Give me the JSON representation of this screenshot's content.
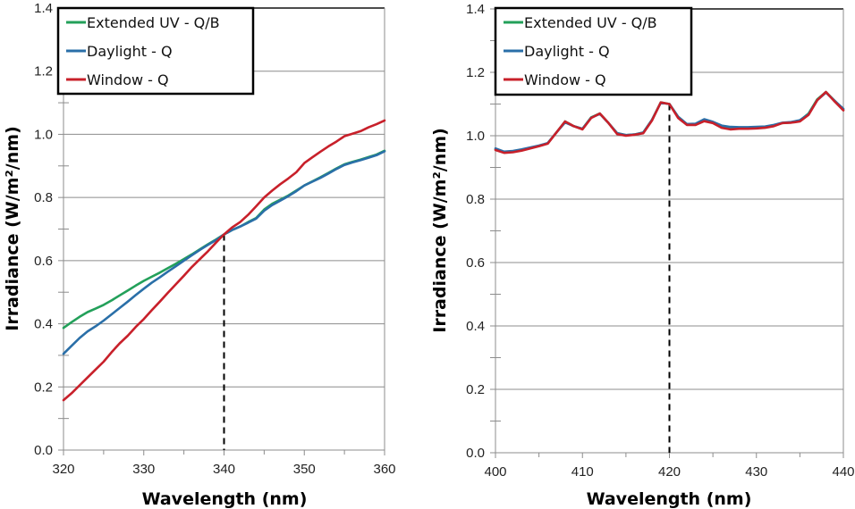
{
  "chart_data": [
    {
      "type": "line",
      "title": "",
      "xlabel": "Wavelength (nm)",
      "ylabel": "Irradiance (W/m²/nm)",
      "xlim": [
        320,
        360
      ],
      "ylim": [
        0.0,
        1.4
      ],
      "xticks": [
        "320",
        "330",
        "340",
        "350",
        "360"
      ],
      "xtick_values": [
        320,
        330,
        340,
        350,
        360
      ],
      "yticks": [
        "0.0",
        "0.2",
        "0.4",
        "0.6",
        "0.8",
        "1.0",
        "1.2",
        "1.4"
      ],
      "ytick_values": [
        0.0,
        0.2,
        0.4,
        0.6,
        0.8,
        1.0,
        1.2,
        1.4
      ],
      "grid": "horizontal",
      "legend_position": "top-left",
      "reference_line": {
        "x": 340,
        "style": "dashed",
        "color": "#000000"
      },
      "series": [
        {
          "name": "Extended UV - Q/B",
          "color": "#23A05A",
          "x": [
            320,
            321,
            322,
            323,
            324,
            325,
            326,
            327,
            328,
            329,
            330,
            331,
            332,
            333,
            334,
            335,
            336,
            337,
            338,
            339,
            340,
            341,
            342,
            343,
            344,
            345,
            346,
            347,
            348,
            349,
            350,
            351,
            352,
            353,
            354,
            355,
            356,
            357,
            358,
            359,
            360
          ],
          "y": [
            0.387,
            0.405,
            0.422,
            0.437,
            0.448,
            0.46,
            0.474,
            0.49,
            0.505,
            0.521,
            0.536,
            0.549,
            0.562,
            0.576,
            0.59,
            0.605,
            0.62,
            0.636,
            0.652,
            0.667,
            0.683,
            0.697,
            0.708,
            0.722,
            0.735,
            0.762,
            0.78,
            0.793,
            0.806,
            0.822,
            0.838,
            0.851,
            0.864,
            0.878,
            0.892,
            0.905,
            0.913,
            0.92,
            0.928,
            0.936,
            0.948
          ]
        },
        {
          "name": "Daylight - Q",
          "color": "#2A6FA8",
          "x": [
            320,
            321,
            322,
            323,
            324,
            325,
            326,
            327,
            328,
            329,
            330,
            331,
            332,
            333,
            334,
            335,
            336,
            337,
            338,
            339,
            340,
            341,
            342,
            343,
            344,
            345,
            346,
            347,
            348,
            349,
            350,
            351,
            352,
            353,
            354,
            355,
            356,
            357,
            358,
            359,
            360
          ],
          "y": [
            0.305,
            0.33,
            0.355,
            0.376,
            0.392,
            0.41,
            0.43,
            0.45,
            0.47,
            0.491,
            0.511,
            0.53,
            0.547,
            0.565,
            0.582,
            0.6,
            0.617,
            0.634,
            0.65,
            0.665,
            0.683,
            0.697,
            0.708,
            0.72,
            0.733,
            0.758,
            0.776,
            0.79,
            0.804,
            0.82,
            0.838,
            0.85,
            0.862,
            0.876,
            0.89,
            0.903,
            0.911,
            0.918,
            0.926,
            0.934,
            0.946
          ]
        },
        {
          "name": "Window - Q",
          "color": "#C8202A",
          "x": [
            320,
            321,
            322,
            323,
            324,
            325,
            326,
            327,
            328,
            329,
            330,
            331,
            332,
            333,
            334,
            335,
            336,
            337,
            338,
            339,
            340,
            341,
            342,
            343,
            344,
            345,
            346,
            347,
            348,
            349,
            350,
            351,
            352,
            353,
            354,
            355,
            356,
            357,
            358,
            359,
            360
          ],
          "y": [
            0.158,
            0.18,
            0.205,
            0.23,
            0.255,
            0.28,
            0.31,
            0.338,
            0.362,
            0.39,
            0.415,
            0.443,
            0.47,
            0.498,
            0.525,
            0.552,
            0.58,
            0.605,
            0.63,
            0.657,
            0.683,
            0.705,
            0.722,
            0.745,
            0.772,
            0.8,
            0.822,
            0.842,
            0.86,
            0.88,
            0.909,
            0.927,
            0.945,
            0.962,
            0.977,
            0.994,
            1.002,
            1.01,
            1.022,
            1.032,
            1.044
          ]
        }
      ]
    },
    {
      "type": "line",
      "title": "",
      "xlabel": "Wavelength (nm)",
      "ylabel": "Irradiance (W/m²/nm)",
      "xlim": [
        400,
        440
      ],
      "ylim": [
        0.0,
        1.4
      ],
      "xticks": [
        "400",
        "410",
        "420",
        "430",
        "440"
      ],
      "xtick_values": [
        400,
        410,
        420,
        430,
        440
      ],
      "yticks": [
        "0.0",
        "0.2",
        "0.4",
        "0.6",
        "0.8",
        "1.0",
        "1.2",
        "1.4"
      ],
      "ytick_values": [
        0.0,
        0.2,
        0.4,
        0.6,
        0.8,
        1.0,
        1.2,
        1.4
      ],
      "grid": "horizontal",
      "legend_position": "top-left",
      "reference_line": {
        "x": 420,
        "style": "dashed",
        "color": "#000000"
      },
      "series": [
        {
          "name": "Extended UV - Q/B",
          "color": "#23A05A",
          "x": [
            400,
            401,
            402,
            403,
            404,
            405,
            406,
            407,
            408,
            409,
            410,
            411,
            412,
            413,
            414,
            415,
            416,
            417,
            418,
            419,
            420,
            421,
            422,
            423,
            424,
            425,
            426,
            427,
            428,
            429,
            430,
            431,
            432,
            433,
            434,
            435,
            436,
            437,
            438,
            439,
            440
          ],
          "y": [
            0.957,
            0.948,
            0.95,
            0.955,
            0.962,
            0.968,
            0.976,
            1.01,
            1.045,
            1.03,
            1.022,
            1.058,
            1.07,
            1.04,
            1.008,
            1.002,
            1.004,
            1.01,
            1.05,
            1.105,
            1.1,
            1.06,
            1.036,
            1.036,
            1.05,
            1.042,
            1.03,
            1.025,
            1.024,
            1.024,
            1.025,
            1.027,
            1.032,
            1.04,
            1.042,
            1.048,
            1.07,
            1.115,
            1.138,
            1.11,
            1.082
          ]
        },
        {
          "name": "Daylight - Q",
          "color": "#2A6FA8",
          "x": [
            400,
            401,
            402,
            403,
            404,
            405,
            406,
            407,
            408,
            409,
            410,
            411,
            412,
            413,
            414,
            415,
            416,
            417,
            418,
            419,
            420,
            421,
            422,
            423,
            424,
            425,
            426,
            427,
            428,
            429,
            430,
            431,
            432,
            433,
            434,
            435,
            436,
            437,
            438,
            439,
            440
          ],
          "y": [
            0.96,
            0.95,
            0.952,
            0.957,
            0.963,
            0.969,
            0.977,
            1.01,
            1.042,
            1.03,
            1.022,
            1.057,
            1.069,
            1.04,
            1.008,
            1.002,
            1.004,
            1.01,
            1.05,
            1.104,
            1.1,
            1.06,
            1.037,
            1.038,
            1.052,
            1.044,
            1.032,
            1.028,
            1.027,
            1.027,
            1.028,
            1.029,
            1.034,
            1.041,
            1.043,
            1.049,
            1.068,
            1.112,
            1.136,
            1.11,
            1.085
          ]
        },
        {
          "name": "Window - Q",
          "color": "#C8202A",
          "x": [
            400,
            401,
            402,
            403,
            404,
            405,
            406,
            407,
            408,
            409,
            410,
            411,
            412,
            413,
            414,
            415,
            416,
            417,
            418,
            419,
            420,
            421,
            422,
            423,
            424,
            425,
            426,
            427,
            428,
            429,
            430,
            431,
            432,
            433,
            434,
            435,
            436,
            437,
            438,
            439,
            440
          ],
          "y": [
            0.955,
            0.946,
            0.948,
            0.953,
            0.96,
            0.967,
            0.975,
            1.01,
            1.045,
            1.03,
            1.02,
            1.056,
            1.07,
            1.04,
            1.005,
            1.0,
            1.003,
            1.008,
            1.048,
            1.105,
            1.1,
            1.056,
            1.034,
            1.034,
            1.046,
            1.04,
            1.025,
            1.02,
            1.022,
            1.022,
            1.023,
            1.025,
            1.03,
            1.04,
            1.041,
            1.045,
            1.066,
            1.112,
            1.138,
            1.108,
            1.08
          ]
        }
      ]
    }
  ]
}
